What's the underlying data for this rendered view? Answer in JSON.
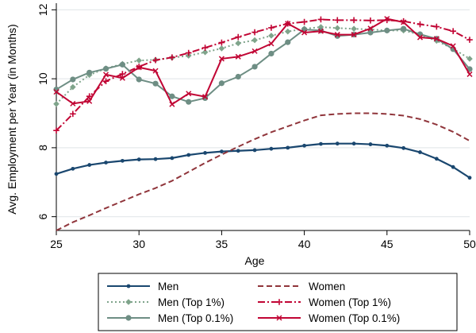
{
  "chart_data": {
    "type": "line",
    "title": "",
    "xlabel": "Age",
    "ylabel": "Avg. Employment per Year (in Months)",
    "xlim": [
      25,
      50
    ],
    "ylim": [
      5.6,
      12.1
    ],
    "xticks": [
      25,
      30,
      35,
      40,
      45,
      50
    ],
    "yticks": [
      6,
      8,
      10,
      12
    ],
    "x_tick_labels": [
      "25",
      "30",
      "35",
      "40",
      "45",
      "50"
    ],
    "y_tick_labels": [
      "6",
      "8",
      "10",
      "12"
    ],
    "grid": "horizontal",
    "legend_position": "bottom",
    "x": [
      25,
      26,
      27,
      28,
      29,
      30,
      31,
      32,
      33,
      34,
      35,
      36,
      37,
      38,
      39,
      40,
      41,
      42,
      43,
      44,
      45,
      46,
      47,
      48,
      49,
      50
    ],
    "series": [
      {
        "name": "Men",
        "color": "#1a476f",
        "dash": "solid",
        "marker": "circle-small",
        "values": [
          7.24,
          7.39,
          7.5,
          7.57,
          7.62,
          7.66,
          7.67,
          7.7,
          7.79,
          7.85,
          7.89,
          7.91,
          7.93,
          7.97,
          8.0,
          8.06,
          8.11,
          8.12,
          8.12,
          8.1,
          8.06,
          7.99,
          7.87,
          7.68,
          7.44,
          7.13
        ]
      },
      {
        "name": "Women",
        "color": "#90353b",
        "dash": "dashed",
        "marker": "none",
        "values": [
          5.6,
          5.84,
          6.04,
          6.25,
          6.45,
          6.65,
          6.83,
          7.04,
          7.3,
          7.56,
          7.8,
          8.03,
          8.25,
          8.45,
          8.62,
          8.79,
          8.94,
          8.98,
          9.0,
          9.0,
          8.98,
          8.93,
          8.83,
          8.67,
          8.46,
          8.2
        ]
      },
      {
        "name": "Men (Top 1%)",
        "color": "#7fa48b",
        "dash": "dotted",
        "marker": "diamond",
        "values": [
          9.27,
          9.76,
          10.11,
          10.3,
          10.43,
          10.53,
          10.55,
          10.61,
          10.67,
          10.77,
          10.88,
          11.03,
          11.12,
          11.25,
          11.37,
          11.45,
          11.5,
          11.47,
          11.45,
          11.43,
          11.4,
          11.4,
          11.28,
          11.1,
          10.87,
          10.58
        ]
      },
      {
        "name": "Women (Top 1%)",
        "color": "#c10534",
        "dash": "dashdot",
        "marker": "plus",
        "values": [
          8.5,
          8.98,
          9.49,
          9.93,
          10.14,
          10.35,
          10.54,
          10.62,
          10.75,
          10.9,
          11.05,
          11.21,
          11.35,
          11.48,
          11.6,
          11.65,
          11.72,
          11.7,
          11.7,
          11.69,
          11.7,
          11.67,
          11.58,
          11.51,
          11.38,
          11.13
        ]
      },
      {
        "name": "Men (Top 0.1%)",
        "color": "#6e8e84",
        "dash": "solid",
        "marker": "circle",
        "values": [
          9.69,
          9.98,
          10.18,
          10.29,
          10.41,
          9.98,
          9.86,
          9.49,
          9.33,
          9.44,
          9.87,
          10.06,
          10.35,
          10.73,
          11.06,
          11.43,
          11.4,
          11.24,
          11.28,
          11.34,
          11.4,
          11.45,
          11.29,
          11.16,
          10.86,
          10.28
        ]
      },
      {
        "name": "Women (Top 0.1%)",
        "color": "#c10534",
        "dash": "solid",
        "marker": "x",
        "values": [
          9.62,
          9.28,
          9.35,
          10.12,
          10.02,
          10.33,
          10.23,
          9.26,
          9.57,
          9.48,
          10.58,
          10.64,
          10.8,
          11.02,
          11.6,
          11.34,
          11.38,
          11.28,
          11.28,
          11.46,
          11.74,
          11.64,
          11.2,
          11.16,
          10.95,
          10.13
        ]
      }
    ]
  }
}
